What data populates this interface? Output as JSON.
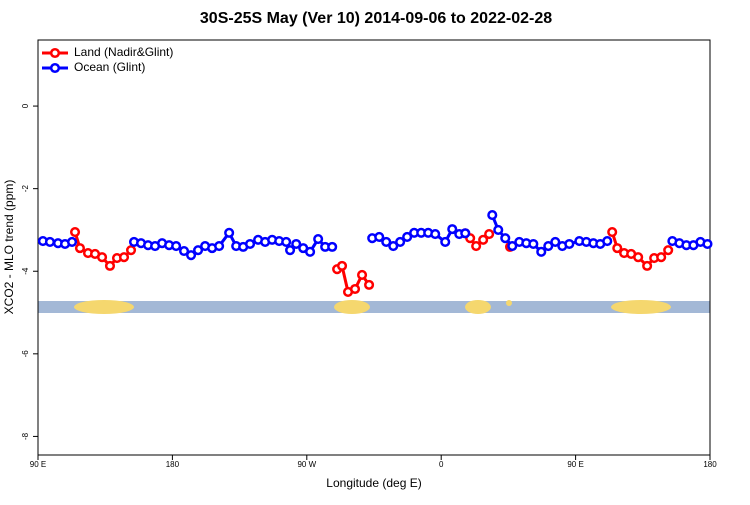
{
  "chart_data": {
    "type": "line",
    "title": "30S-25S May (Ver 10)   2014-09-06 to 2022-02-28",
    "x_label": "Longitude (deg E)",
    "y_label": "XCO2 - MLO trend (ppm)",
    "xlim": [
      90,
      540
    ],
    "ylim": [
      -8.45,
      1.6
    ],
    "xticks": [
      {
        "value": 90,
        "label": "90 E"
      },
      180,
      {
        "value": 270,
        "label": "90 W"
      },
      {
        "value": 360,
        "label": "0"
      },
      {
        "value": 450,
        "label": "90 E"
      },
      {
        "value": 540,
        "label": "180"
      }
    ],
    "yticks": [
      0,
      -2,
      -4,
      -6,
      -8
    ],
    "legend": "top-left",
    "series": [
      {
        "name": "Land (Nadir&Glint)",
        "color": "#ff0000",
        "x": [
          114.8,
          118.1,
          123.5,
          128.2,
          132.9,
          138.2,
          142.9,
          147.6,
          152.3,
          null,
          290.3,
          293.6,
          297.6,
          302.3,
          307.0,
          311.7,
          null,
          376.1,
          379.4,
          383.4,
          388.1,
          392.1,
          null,
          406.1,
          null,
          474.5,
          477.9,
          482.5,
          487.2,
          491.9,
          497.9,
          502.6,
          507.3,
          512.0
        ],
        "values": [
          -3.05,
          -3.44,
          -3.56,
          -3.58,
          -3.66,
          -3.87,
          -3.68,
          -3.66,
          -3.49,
          null,
          -3.95,
          -3.87,
          -4.5,
          -4.43,
          -4.09,
          -4.33,
          null,
          -3.08,
          -3.2,
          -3.39,
          -3.24,
          -3.1,
          null,
          -3.41,
          null,
          -3.05,
          -3.44,
          -3.56,
          -3.58,
          -3.66,
          -3.87,
          -3.68,
          -3.66,
          -3.49
        ]
      },
      {
        "name": "Ocean (Glint)",
        "color": "#0000ff",
        "x": [
          93.3,
          98.0,
          103.4,
          108.1,
          112.8,
          null,
          154.3,
          159.0,
          163.7,
          168.4,
          173.1,
          177.8,
          182.5,
          187.8,
          192.5,
          197.2,
          201.9,
          206.6,
          211.3,
          218.0,
          222.7,
          227.4,
          232.0,
          237.4,
          242.1,
          246.8,
          251.5,
          256.2,
          258.8,
          262.9,
          267.6,
          272.2,
          277.6,
          282.3,
          287.0,
          null,
          313.8,
          318.5,
          323.2,
          327.9,
          332.5,
          337.2,
          341.9,
          346.6,
          351.3,
          356.0,
          362.7,
          367.4,
          372.1,
          376.1,
          null,
          394.2,
          398.2,
          402.9,
          407.6,
          412.3,
          417.0,
          421.7,
          427.0,
          431.7,
          436.4,
          441.1,
          445.8,
          452.5,
          457.2,
          461.9,
          466.5,
          471.2,
          null,
          514.8,
          519.5,
          524.2,
          528.9,
          533.6,
          538.3
        ],
        "values": [
          -3.27,
          -3.29,
          -3.32,
          -3.34,
          -3.29,
          null,
          -3.29,
          -3.32,
          -3.37,
          -3.39,
          -3.32,
          -3.37,
          -3.39,
          -3.51,
          -3.61,
          -3.49,
          -3.39,
          -3.44,
          -3.39,
          -3.07,
          -3.39,
          -3.41,
          -3.34,
          -3.24,
          -3.29,
          -3.24,
          -3.27,
          -3.29,
          -3.49,
          -3.34,
          -3.44,
          -3.53,
          -3.22,
          -3.41,
          -3.41,
          null,
          -3.2,
          -3.17,
          -3.29,
          -3.39,
          -3.29,
          -3.17,
          -3.07,
          -3.07,
          -3.07,
          -3.1,
          -3.29,
          -2.98,
          -3.1,
          -3.08,
          null,
          -2.64,
          -3.0,
          -3.2,
          -3.39,
          -3.29,
          -3.32,
          -3.34,
          -3.53,
          -3.39,
          -3.29,
          -3.39,
          -3.34,
          -3.27,
          -3.29,
          -3.32,
          -3.34,
          -3.27,
          null,
          -3.27,
          -3.32,
          -3.37,
          -3.37,
          -3.29,
          -3.34
        ]
      }
    ]
  }
}
